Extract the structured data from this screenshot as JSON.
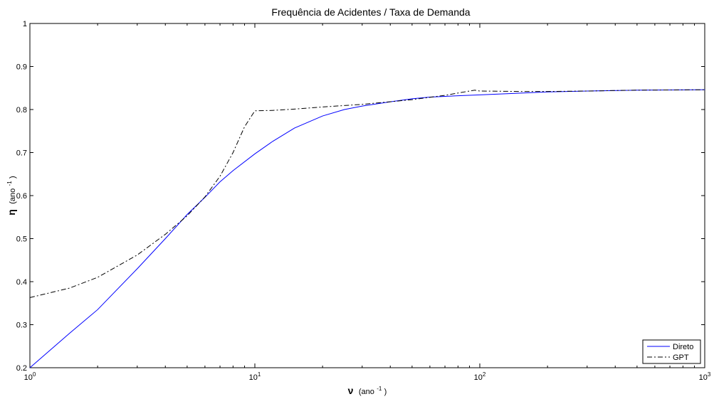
{
  "chart_data": {
    "type": "line",
    "title": "Frequência de Acidentes / Taxa de Demanda",
    "x_axis": {
      "label_symbol": "ν",
      "label_unit": "(ano",
      "label_exponent": "-1",
      "label_close": ")",
      "scale": "log",
      "range": [
        1,
        1000
      ],
      "ticks": [
        {
          "value": 1,
          "base": "10",
          "exponent": "0"
        },
        {
          "value": 10,
          "base": "10",
          "exponent": "1"
        },
        {
          "value": 100,
          "base": "10",
          "exponent": "2"
        },
        {
          "value": 1000,
          "base": "10",
          "exponent": "3"
        }
      ]
    },
    "y_axis": {
      "label_symbol": "η",
      "label_unit": "(ano",
      "label_exponent": "-1",
      "label_close": ")",
      "scale": "linear",
      "range": [
        0.2,
        1.0
      ],
      "ticks": [
        {
          "value": 0.2,
          "label": "0.2"
        },
        {
          "value": 0.3,
          "label": "0.3"
        },
        {
          "value": 0.4,
          "label": "0.4"
        },
        {
          "value": 0.5,
          "label": "0.5"
        },
        {
          "value": 0.6,
          "label": "0.6"
        },
        {
          "value": 0.7,
          "label": "0.7"
        },
        {
          "value": 0.8,
          "label": "0.8"
        },
        {
          "value": 0.9,
          "label": "0.9"
        },
        {
          "value": 1.0,
          "label": "1"
        }
      ]
    },
    "grid": false,
    "legend_position": "bottom-right",
    "series": [
      {
        "name": "Direto",
        "color": "#0000ff",
        "line_style": "solid",
        "x": [
          1,
          1.5,
          2,
          3,
          4,
          5,
          6,
          7,
          8,
          10,
          12,
          15,
          20,
          25,
          30,
          40,
          50,
          60,
          80,
          100,
          150,
          200,
          300,
          500,
          1000
        ],
        "y": [
          0.2,
          0.28,
          0.335,
          0.43,
          0.5,
          0.556,
          0.596,
          0.632,
          0.658,
          0.697,
          0.726,
          0.757,
          0.785,
          0.8,
          0.808,
          0.818,
          0.825,
          0.829,
          0.832,
          0.834,
          0.838,
          0.841,
          0.843,
          0.845,
          0.846
        ]
      },
      {
        "name": "GPT",
        "color": "#000000",
        "line_style": "dash-dot",
        "x": [
          1,
          1.5,
          2,
          3,
          4,
          5,
          6,
          7,
          8,
          9,
          10,
          12,
          15,
          20,
          30,
          50,
          70,
          90,
          95,
          100,
          150,
          200,
          300,
          500,
          1000
        ],
        "y": [
          0.363,
          0.385,
          0.41,
          0.462,
          0.51,
          0.553,
          0.597,
          0.645,
          0.7,
          0.76,
          0.797,
          0.798,
          0.801,
          0.806,
          0.812,
          0.823,
          0.833,
          0.843,
          0.845,
          0.843,
          0.842,
          0.842,
          0.843,
          0.845,
          0.846
        ]
      }
    ]
  }
}
